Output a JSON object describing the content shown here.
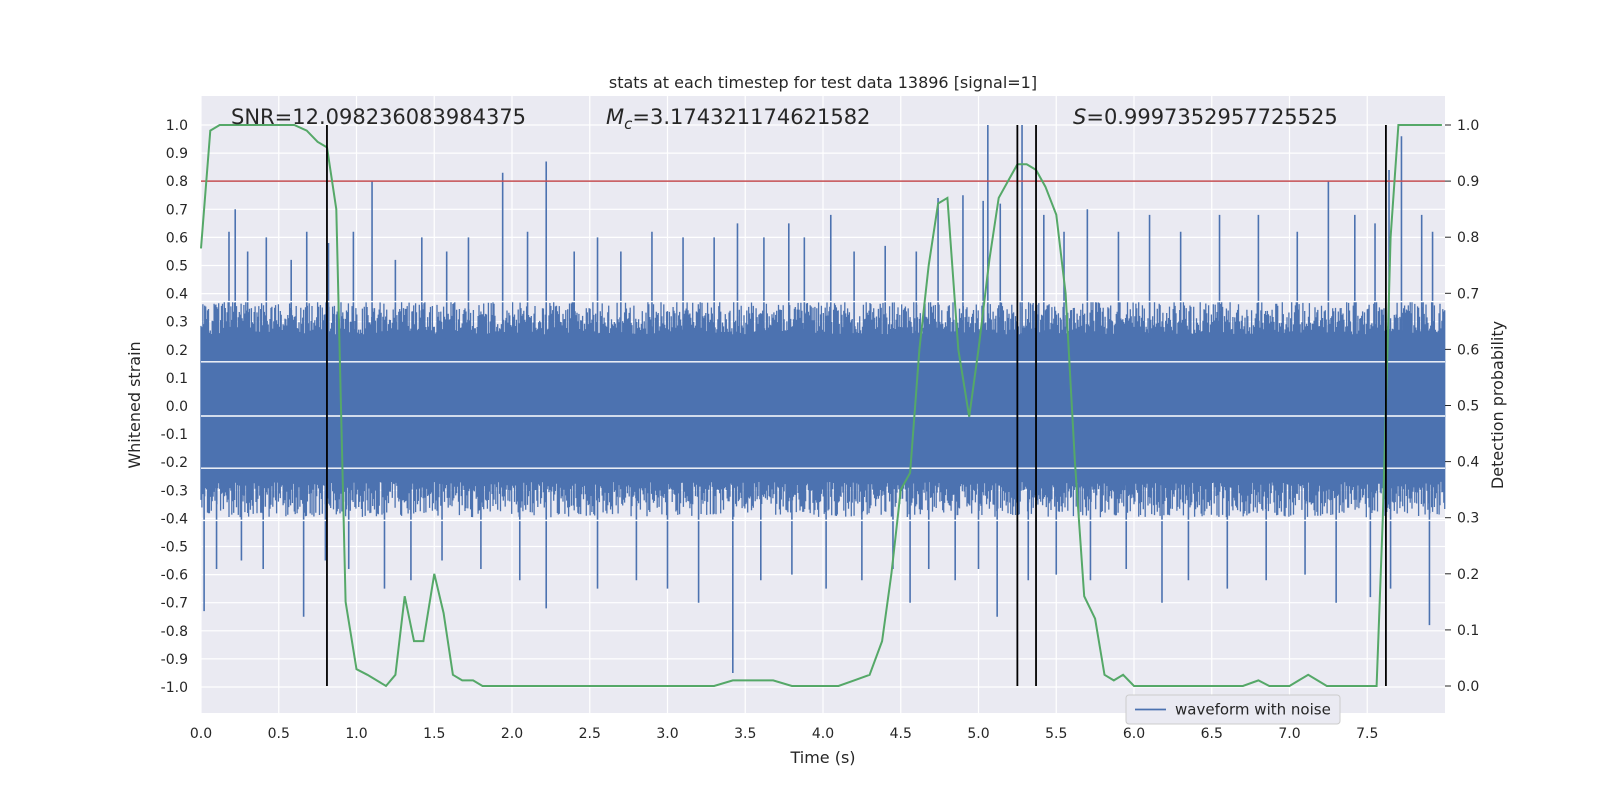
{
  "chart_data": {
    "type": "line",
    "title": "stats at each timestep for test data 13896 [signal=1]",
    "xlabel": "Time (s)",
    "ylabel": "Whitened strain",
    "y2label": "Detection probability",
    "xlim": [
      0.0,
      8.0
    ],
    "ylim": [
      -1.1,
      1.1
    ],
    "y2lim": [
      -0.05,
      1.05
    ],
    "xticks": [
      "0.0",
      "0.5",
      "1.0",
      "1.5",
      "2.0",
      "2.5",
      "3.0",
      "3.5",
      "4.0",
      "4.5",
      "5.0",
      "5.5",
      "6.0",
      "6.5",
      "7.0",
      "7.5"
    ],
    "yticks": [
      "-1.0",
      "-0.9",
      "-0.8",
      "-0.7",
      "-0.6",
      "-0.5",
      "-0.4",
      "-0.3",
      "-0.2",
      "-0.1",
      "0.0",
      "0.1",
      "0.2",
      "0.3",
      "0.4",
      "0.5",
      "0.6",
      "0.7",
      "0.8",
      "0.9",
      "1.0"
    ],
    "y2ticks": [
      "0.0",
      "0.1",
      "0.2",
      "0.3",
      "0.4",
      "0.5",
      "0.6",
      "0.7",
      "0.8",
      "0.9",
      "1.0"
    ],
    "annotations": {
      "snr": "SNR=12.098236083984375",
      "mc_symbol": "M",
      "mc_sub": "c",
      "mc_value": "=3.174321174621582",
      "s_symbol": "S",
      "s_value": "=0.9997352957725525"
    },
    "legend": {
      "label": "waveform with noise",
      "position": "lower-right"
    },
    "threshold_line": {
      "y2": 0.9,
      "color": "#c44e52"
    },
    "vertical_lines": [
      0.81,
      5.25,
      5.37,
      7.62
    ],
    "waveform": {
      "name": "waveform with noise",
      "color": "#4c72b0",
      "dense_band": [
        -0.36,
        0.34
      ],
      "spikes_up": [
        [
          0.18,
          0.62
        ],
        [
          0.22,
          0.7
        ],
        [
          0.3,
          0.55
        ],
        [
          0.42,
          0.6
        ],
        [
          0.58,
          0.52
        ],
        [
          0.68,
          0.62
        ],
        [
          0.82,
          0.58
        ],
        [
          0.98,
          0.62
        ],
        [
          1.1,
          0.8
        ],
        [
          1.25,
          0.52
        ],
        [
          1.42,
          0.6
        ],
        [
          1.58,
          0.55
        ],
        [
          1.72,
          0.6
        ],
        [
          1.94,
          0.83
        ],
        [
          2.1,
          0.62
        ],
        [
          2.22,
          0.87
        ],
        [
          2.4,
          0.55
        ],
        [
          2.55,
          0.6
        ],
        [
          2.7,
          0.55
        ],
        [
          2.9,
          0.62
        ],
        [
          3.1,
          0.6
        ],
        [
          3.3,
          0.6
        ],
        [
          3.45,
          0.65
        ],
        [
          3.62,
          0.6
        ],
        [
          3.78,
          0.65
        ],
        [
          3.88,
          0.6
        ],
        [
          4.05,
          0.68
        ],
        [
          4.2,
          0.55
        ],
        [
          4.4,
          0.57
        ],
        [
          4.6,
          0.55
        ],
        [
          4.74,
          0.74
        ],
        [
          4.9,
          0.75
        ],
        [
          5.03,
          0.73
        ],
        [
          5.06,
          1.0
        ],
        [
          5.14,
          0.72
        ],
        [
          5.28,
          1.0
        ],
        [
          5.42,
          0.68
        ],
        [
          5.55,
          0.62
        ],
        [
          5.7,
          0.7
        ],
        [
          5.9,
          0.62
        ],
        [
          6.1,
          0.68
        ],
        [
          6.3,
          0.62
        ],
        [
          6.55,
          0.68
        ],
        [
          6.8,
          0.68
        ],
        [
          7.05,
          0.62
        ],
        [
          7.25,
          0.8
        ],
        [
          7.42,
          0.68
        ],
        [
          7.55,
          0.65
        ],
        [
          7.64,
          0.84
        ],
        [
          7.72,
          0.96
        ],
        [
          7.85,
          0.68
        ],
        [
          7.92,
          0.62
        ]
      ],
      "spikes_down": [
        [
          0.02,
          -0.73
        ],
        [
          0.1,
          -0.58
        ],
        [
          0.26,
          -0.55
        ],
        [
          0.4,
          -0.58
        ],
        [
          0.66,
          -0.75
        ],
        [
          0.8,
          -0.55
        ],
        [
          0.95,
          -0.58
        ],
        [
          1.18,
          -0.65
        ],
        [
          1.35,
          -0.62
        ],
        [
          1.55,
          -0.55
        ],
        [
          1.8,
          -0.58
        ],
        [
          2.05,
          -0.62
        ],
        [
          2.22,
          -0.72
        ],
        [
          2.55,
          -0.65
        ],
        [
          2.8,
          -0.62
        ],
        [
          3.0,
          -0.65
        ],
        [
          3.2,
          -0.7
        ],
        [
          3.42,
          -0.95
        ],
        [
          3.6,
          -0.62
        ],
        [
          3.8,
          -0.6
        ],
        [
          4.02,
          -0.65
        ],
        [
          4.25,
          -0.62
        ],
        [
          4.45,
          -0.58
        ],
        [
          4.56,
          -0.7
        ],
        [
          4.68,
          -0.58
        ],
        [
          4.85,
          -0.62
        ],
        [
          5.0,
          -0.58
        ],
        [
          5.12,
          -0.75
        ],
        [
          5.32,
          -0.62
        ],
        [
          5.5,
          -0.6
        ],
        [
          5.72,
          -0.62
        ],
        [
          5.95,
          -0.58
        ],
        [
          6.18,
          -0.7
        ],
        [
          6.35,
          -0.62
        ],
        [
          6.6,
          -0.65
        ],
        [
          6.85,
          -0.62
        ],
        [
          7.1,
          -0.6
        ],
        [
          7.3,
          -0.7
        ],
        [
          7.52,
          -0.68
        ],
        [
          7.65,
          -0.65
        ],
        [
          7.9,
          -0.78
        ]
      ]
    },
    "detection_probability": {
      "name": "Detection probability",
      "color": "#55a868",
      "x": [
        0.0,
        0.06,
        0.12,
        0.2,
        0.3,
        0.4,
        0.5,
        0.6,
        0.68,
        0.75,
        0.81,
        0.87,
        0.93,
        1.0,
        1.07,
        1.13,
        1.19,
        1.25,
        1.31,
        1.37,
        1.43,
        1.5,
        1.56,
        1.62,
        1.68,
        1.75,
        1.81,
        1.87,
        1.95,
        2.1,
        2.3,
        2.5,
        2.8,
        3.1,
        3.3,
        3.42,
        3.55,
        3.68,
        3.8,
        3.95,
        4.1,
        4.2,
        4.3,
        4.38,
        4.44,
        4.5,
        4.56,
        4.62,
        4.68,
        4.74,
        4.8,
        4.87,
        4.94,
        5.0,
        5.07,
        5.13,
        5.19,
        5.25,
        5.31,
        5.37,
        5.43,
        5.5,
        5.56,
        5.62,
        5.68,
        5.75,
        5.81,
        5.87,
        5.93,
        6.0,
        6.06,
        6.12,
        6.2,
        6.3,
        6.5,
        6.7,
        6.8,
        6.87,
        6.93,
        7.0,
        7.06,
        7.12,
        7.18,
        7.24,
        7.3,
        7.4,
        7.5,
        7.56,
        7.6,
        7.65,
        7.7,
        7.76,
        7.85,
        7.98
      ],
      "y": [
        0.78,
        0.99,
        1.0,
        1.0,
        1.0,
        1.0,
        1.0,
        1.0,
        0.99,
        0.97,
        0.96,
        0.85,
        0.15,
        0.03,
        0.02,
        0.01,
        0.0,
        0.02,
        0.16,
        0.08,
        0.08,
        0.2,
        0.13,
        0.02,
        0.01,
        0.01,
        0.0,
        0.0,
        0.0,
        0.0,
        0.0,
        0.0,
        0.0,
        0.0,
        0.0,
        0.01,
        0.01,
        0.01,
        0.0,
        0.0,
        0.0,
        0.01,
        0.02,
        0.08,
        0.2,
        0.35,
        0.38,
        0.6,
        0.75,
        0.86,
        0.87,
        0.6,
        0.48,
        0.6,
        0.76,
        0.87,
        0.9,
        0.93,
        0.93,
        0.92,
        0.89,
        0.84,
        0.7,
        0.4,
        0.16,
        0.12,
        0.02,
        0.01,
        0.02,
        0.0,
        0.0,
        0.0,
        0.0,
        0.0,
        0.0,
        0.0,
        0.01,
        0.0,
        0.0,
        0.0,
        0.01,
        0.02,
        0.01,
        0.0,
        0.0,
        0.0,
        0.0,
        0.0,
        0.3,
        0.8,
        1.0,
        1.0,
        1.0,
        1.0
      ]
    }
  }
}
